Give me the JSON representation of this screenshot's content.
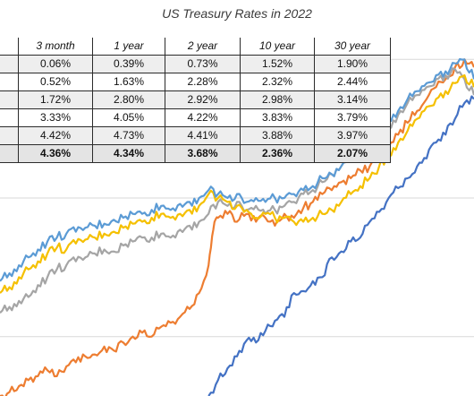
{
  "chart_data": {
    "type": "line",
    "title": "US Treasury Rates in 2022",
    "series": [
      {
        "key": "30y",
        "color": "#4472c4",
        "points": [
          [
            0.44,
            4.7
          ],
          [
            0.46,
            4.78
          ],
          [
            0.48,
            4.84
          ],
          [
            0.5,
            4.9
          ],
          [
            0.52,
            4.98
          ],
          [
            0.54,
            4.97
          ],
          [
            0.56,
            5.03
          ],
          [
            0.58,
            5.08
          ],
          [
            0.6,
            5.1
          ],
          [
            0.62,
            5.22
          ],
          [
            0.64,
            5.23
          ],
          [
            0.66,
            5.28
          ],
          [
            0.68,
            5.3
          ],
          [
            0.7,
            5.4
          ],
          [
            0.72,
            5.43
          ],
          [
            0.74,
            5.48
          ],
          [
            0.76,
            5.5
          ],
          [
            0.78,
            5.58
          ],
          [
            0.8,
            5.63
          ],
          [
            0.82,
            5.7
          ],
          [
            0.84,
            5.75
          ],
          [
            0.86,
            5.8
          ],
          [
            0.88,
            5.86
          ],
          [
            0.9,
            5.9
          ],
          [
            0.92,
            5.98
          ],
          [
            0.94,
            6.02
          ],
          [
            0.96,
            6.1
          ],
          [
            0.98,
            6.18
          ],
          [
            1.0,
            6.2
          ]
        ]
      },
      {
        "key": "10y",
        "color": "#ed7d31",
        "points": [
          [
            0.0,
            4.7
          ],
          [
            0.02,
            4.72
          ],
          [
            0.04,
            4.75
          ],
          [
            0.06,
            4.78
          ],
          [
            0.08,
            4.8
          ],
          [
            0.1,
            4.83
          ],
          [
            0.12,
            4.8
          ],
          [
            0.14,
            4.85
          ],
          [
            0.16,
            4.87
          ],
          [
            0.18,
            4.9
          ],
          [
            0.2,
            4.91
          ],
          [
            0.22,
            4.95
          ],
          [
            0.24,
            4.93
          ],
          [
            0.26,
            4.97
          ],
          [
            0.28,
            5.0
          ],
          [
            0.3,
            5.02
          ],
          [
            0.32,
            5.0
          ],
          [
            0.34,
            5.05
          ],
          [
            0.36,
            5.07
          ],
          [
            0.38,
            5.1
          ],
          [
            0.4,
            5.14
          ],
          [
            0.42,
            5.22
          ],
          [
            0.44,
            5.36
          ],
          [
            0.45,
            5.54
          ],
          [
            0.46,
            5.6
          ],
          [
            0.48,
            5.62
          ],
          [
            0.5,
            5.58
          ],
          [
            0.52,
            5.62
          ],
          [
            0.54,
            5.58
          ],
          [
            0.56,
            5.6
          ],
          [
            0.58,
            5.56
          ],
          [
            0.6,
            5.62
          ],
          [
            0.62,
            5.6
          ],
          [
            0.64,
            5.65
          ],
          [
            0.66,
            5.68
          ],
          [
            0.68,
            5.72
          ],
          [
            0.7,
            5.74
          ],
          [
            0.72,
            5.78
          ],
          [
            0.74,
            5.8
          ],
          [
            0.76,
            5.84
          ],
          [
            0.78,
            5.86
          ],
          [
            0.8,
            5.9
          ],
          [
            0.82,
            5.96
          ],
          [
            0.84,
            6.02
          ],
          [
            0.86,
            6.08
          ],
          [
            0.88,
            6.14
          ],
          [
            0.9,
            6.2
          ],
          [
            0.92,
            6.26
          ],
          [
            0.94,
            6.3
          ],
          [
            0.96,
            6.36
          ],
          [
            0.98,
            6.4
          ],
          [
            1.0,
            6.36
          ]
        ]
      },
      {
        "key": "1y",
        "color": "#a5a5a5",
        "points": [
          [
            0.0,
            5.12
          ],
          [
            0.02,
            5.15
          ],
          [
            0.04,
            5.18
          ],
          [
            0.06,
            5.2
          ],
          [
            0.08,
            5.26
          ],
          [
            0.1,
            5.3
          ],
          [
            0.12,
            5.34
          ],
          [
            0.14,
            5.36
          ],
          [
            0.16,
            5.38
          ],
          [
            0.18,
            5.4
          ],
          [
            0.2,
            5.42
          ],
          [
            0.22,
            5.44
          ],
          [
            0.24,
            5.43
          ],
          [
            0.26,
            5.46
          ],
          [
            0.28,
            5.48
          ],
          [
            0.3,
            5.5
          ],
          [
            0.32,
            5.5
          ],
          [
            0.34,
            5.52
          ],
          [
            0.36,
            5.5
          ],
          [
            0.38,
            5.54
          ],
          [
            0.4,
            5.56
          ],
          [
            0.42,
            5.58
          ],
          [
            0.44,
            5.62
          ],
          [
            0.46,
            5.68
          ],
          [
            0.48,
            5.66
          ],
          [
            0.5,
            5.68
          ],
          [
            0.52,
            5.64
          ],
          [
            0.54,
            5.66
          ],
          [
            0.56,
            5.62
          ],
          [
            0.58,
            5.64
          ],
          [
            0.6,
            5.66
          ],
          [
            0.62,
            5.68
          ],
          [
            0.64,
            5.72
          ],
          [
            0.66,
            5.74
          ],
          [
            0.68,
            5.78
          ],
          [
            0.7,
            5.82
          ],
          [
            0.72,
            5.86
          ],
          [
            0.74,
            5.9
          ],
          [
            0.76,
            5.94
          ],
          [
            0.78,
            5.98
          ],
          [
            0.8,
            6.02
          ],
          [
            0.82,
            6.06
          ],
          [
            0.84,
            6.12
          ],
          [
            0.86,
            6.18
          ],
          [
            0.88,
            6.22
          ],
          [
            0.9,
            6.26
          ],
          [
            0.92,
            6.3
          ],
          [
            0.94,
            6.32
          ],
          [
            0.96,
            6.35
          ],
          [
            0.98,
            6.3
          ],
          [
            1.0,
            6.22
          ]
        ]
      },
      {
        "key": "3m",
        "color": "#f5c000",
        "points": [
          [
            0.0,
            5.22
          ],
          [
            0.02,
            5.25
          ],
          [
            0.04,
            5.3
          ],
          [
            0.06,
            5.34
          ],
          [
            0.08,
            5.38
          ],
          [
            0.1,
            5.42
          ],
          [
            0.12,
            5.45
          ],
          [
            0.14,
            5.44
          ],
          [
            0.16,
            5.47
          ],
          [
            0.18,
            5.49
          ],
          [
            0.2,
            5.5
          ],
          [
            0.22,
            5.52
          ],
          [
            0.24,
            5.53
          ],
          [
            0.26,
            5.55
          ],
          [
            0.28,
            5.57
          ],
          [
            0.3,
            5.58
          ],
          [
            0.32,
            5.6
          ],
          [
            0.34,
            5.62
          ],
          [
            0.36,
            5.6
          ],
          [
            0.38,
            5.62
          ],
          [
            0.4,
            5.64
          ],
          [
            0.42,
            5.66
          ],
          [
            0.44,
            5.72
          ],
          [
            0.46,
            5.7
          ],
          [
            0.48,
            5.68
          ],
          [
            0.5,
            5.66
          ],
          [
            0.52,
            5.64
          ],
          [
            0.54,
            5.6
          ],
          [
            0.56,
            5.62
          ],
          [
            0.58,
            5.6
          ],
          [
            0.6,
            5.6
          ],
          [
            0.62,
            5.58
          ],
          [
            0.64,
            5.58
          ],
          [
            0.66,
            5.6
          ],
          [
            0.68,
            5.62
          ],
          [
            0.7,
            5.64
          ],
          [
            0.72,
            5.68
          ],
          [
            0.74,
            5.72
          ],
          [
            0.76,
            5.76
          ],
          [
            0.78,
            5.8
          ],
          [
            0.8,
            5.86
          ],
          [
            0.82,
            5.92
          ],
          [
            0.84,
            5.98
          ],
          [
            0.86,
            6.04
          ],
          [
            0.88,
            6.1
          ],
          [
            0.9,
            6.16
          ],
          [
            0.92,
            6.2
          ],
          [
            0.94,
            6.24
          ],
          [
            0.96,
            6.28
          ],
          [
            0.98,
            6.32
          ],
          [
            1.0,
            6.26
          ]
        ]
      },
      {
        "key": "2y",
        "color": "#5b9bd5",
        "points": [
          [
            0.0,
            5.28
          ],
          [
            0.02,
            5.32
          ],
          [
            0.04,
            5.36
          ],
          [
            0.06,
            5.4
          ],
          [
            0.08,
            5.44
          ],
          [
            0.1,
            5.48
          ],
          [
            0.12,
            5.5
          ],
          [
            0.14,
            5.52
          ],
          [
            0.16,
            5.53
          ],
          [
            0.18,
            5.55
          ],
          [
            0.2,
            5.56
          ],
          [
            0.22,
            5.57
          ],
          [
            0.24,
            5.59
          ],
          [
            0.26,
            5.6
          ],
          [
            0.28,
            5.62
          ],
          [
            0.3,
            5.62
          ],
          [
            0.32,
            5.64
          ],
          [
            0.34,
            5.66
          ],
          [
            0.36,
            5.64
          ],
          [
            0.38,
            5.67
          ],
          [
            0.4,
            5.68
          ],
          [
            0.42,
            5.7
          ],
          [
            0.44,
            5.74
          ],
          [
            0.46,
            5.72
          ],
          [
            0.48,
            5.7
          ],
          [
            0.5,
            5.72
          ],
          [
            0.52,
            5.68
          ],
          [
            0.54,
            5.7
          ],
          [
            0.56,
            5.68
          ],
          [
            0.58,
            5.7
          ],
          [
            0.6,
            5.7
          ],
          [
            0.62,
            5.72
          ],
          [
            0.64,
            5.74
          ],
          [
            0.66,
            5.76
          ],
          [
            0.68,
            5.8
          ],
          [
            0.7,
            5.82
          ],
          [
            0.72,
            5.86
          ],
          [
            0.74,
            5.9
          ],
          [
            0.76,
            5.94
          ],
          [
            0.78,
            5.98
          ],
          [
            0.8,
            6.04
          ],
          [
            0.82,
            6.1
          ],
          [
            0.84,
            6.14
          ],
          [
            0.86,
            6.2
          ],
          [
            0.88,
            6.24
          ],
          [
            0.9,
            6.28
          ],
          [
            0.92,
            6.32
          ],
          [
            0.94,
            6.34
          ],
          [
            0.96,
            6.38
          ],
          [
            0.98,
            6.4
          ],
          [
            1.0,
            6.3
          ]
        ]
      }
    ],
    "y_range": [
      4.7,
      6.7
    ],
    "x_range": [
      0,
      1
    ],
    "gridlines": [
      5.0,
      5.7,
      6.4
    ],
    "table": {
      "columns": [
        "3 month",
        "1 year",
        "2 year",
        "10 year",
        "30 year"
      ],
      "rows": [
        [
          "0.06%",
          "0.39%",
          "0.73%",
          "1.52%",
          "1.90%"
        ],
        [
          "0.52%",
          "1.63%",
          "2.28%",
          "2.32%",
          "2.44%"
        ],
        [
          "1.72%",
          "2.80%",
          "2.92%",
          "2.98%",
          "3.14%"
        ],
        [
          "3.33%",
          "4.05%",
          "4.22%",
          "3.83%",
          "3.79%"
        ],
        [
          "4.42%",
          "4.73%",
          "4.41%",
          "3.88%",
          "3.97%"
        ],
        [
          "4.36%",
          "4.34%",
          "3.68%",
          "2.36%",
          "2.07%"
        ]
      ]
    }
  }
}
